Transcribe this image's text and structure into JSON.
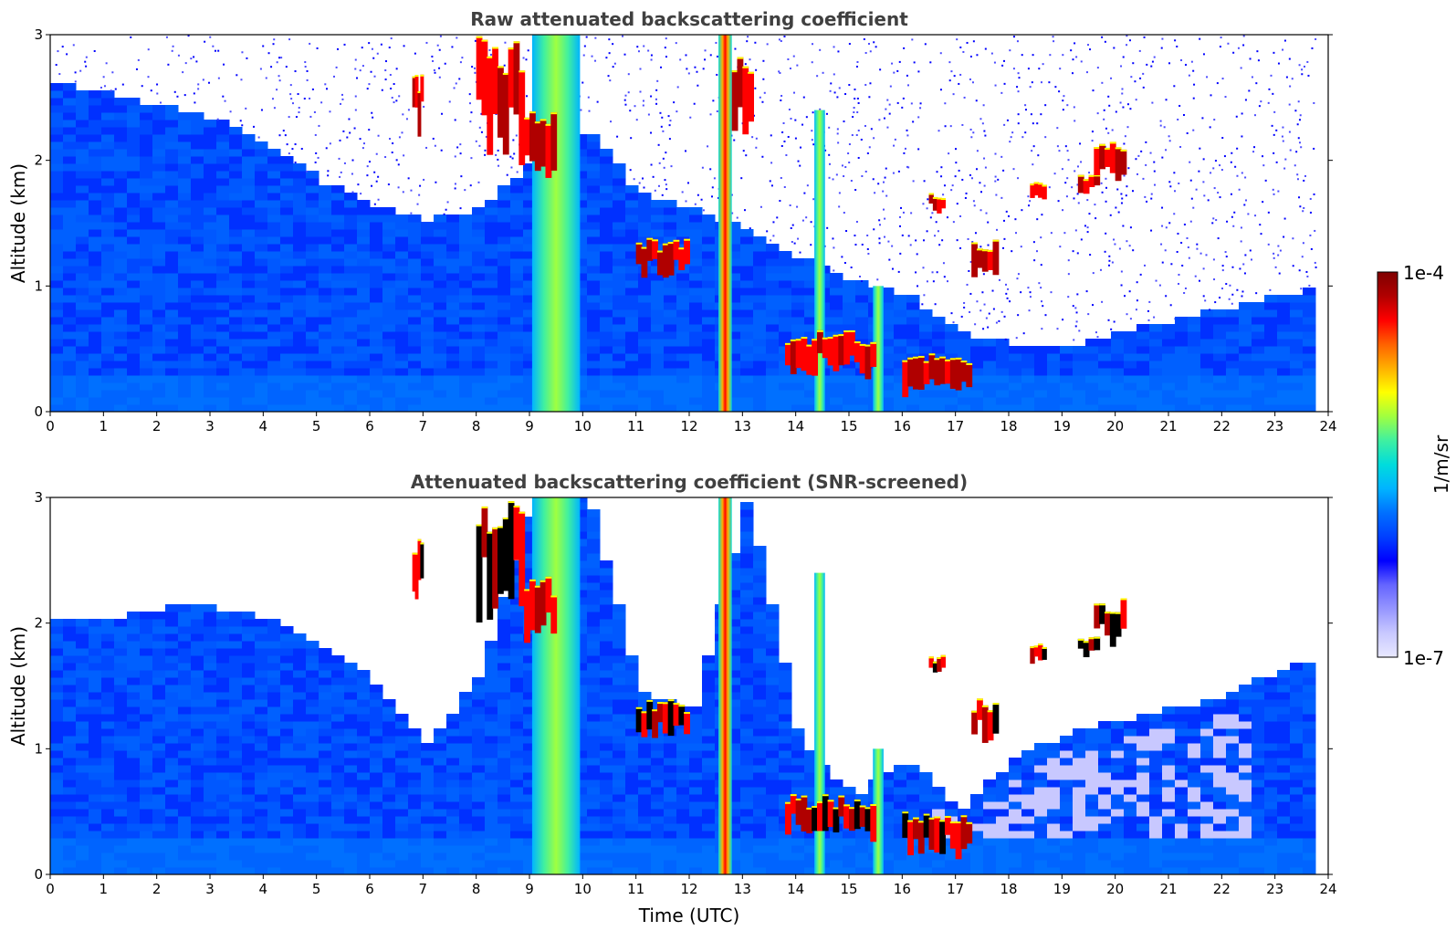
{
  "figure": {
    "colorbar": {
      "max_label": "1e-4",
      "min_label": "1e-7",
      "unit_label": "1/m/sr",
      "colors": [
        "#e8e8ff",
        "#c8c8ff",
        "#9696ff",
        "#6464ff",
        "#0000ff",
        "#0040ff",
        "#0070ff",
        "#00b4ff",
        "#00dcdc",
        "#40f0a0",
        "#a0ff40",
        "#ffff00",
        "#ffb000",
        "#ff6000",
        "#ff0000",
        "#b00000",
        "#7f0000"
      ]
    }
  },
  "chart_data": [
    {
      "type": "heatmap",
      "title": "Raw attenuated backscattering coefficient",
      "xlabel": "",
      "ylabel": "Altitude (km)",
      "xlim": [
        0,
        24
      ],
      "ylim": [
        0,
        3
      ],
      "x_ticks": [
        "0",
        "1",
        "2",
        "3",
        "4",
        "5",
        "6",
        "7",
        "8",
        "9",
        "10",
        "11",
        "12",
        "13",
        "14",
        "15",
        "16",
        "17",
        "18",
        "19",
        "20",
        "21",
        "22",
        "23",
        "24"
      ],
      "y_ticks": [
        "0",
        "1",
        "2",
        "3"
      ],
      "data_end_hour": 23.65,
      "noise_ceiling_km": [
        2.6,
        2.5,
        2.4,
        2.3,
        2.1,
        1.8,
        1.6,
        1.5,
        1.6,
        2.0,
        2.2,
        1.7,
        1.6,
        1.4,
        1.2,
        1.0,
        0.9,
        0.6,
        0.5,
        0.5,
        0.6,
        0.7,
        0.8,
        0.9,
        1.0
      ],
      "features": [
        {
          "kind": "plume",
          "x": [
            9.05,
            9.95
          ],
          "y": [
            0,
            3
          ],
          "level": "moderate"
        },
        {
          "kind": "plume",
          "x": [
            12.55,
            12.8
          ],
          "y": [
            0,
            3
          ],
          "level": "strong"
        },
        {
          "kind": "plume",
          "x": [
            15.45,
            15.65
          ],
          "y": [
            0,
            1.0
          ],
          "level": "moderate"
        },
        {
          "kind": "plume",
          "x": [
            14.35,
            14.55
          ],
          "y": [
            0,
            2.4
          ],
          "level": "moderate"
        },
        {
          "kind": "cloud",
          "x": [
            8.0,
            8.9
          ],
          "y": [
            2.2,
            3.0
          ],
          "level": "strong"
        },
        {
          "kind": "cloud",
          "x": [
            8.9,
            9.5
          ],
          "y": [
            1.9,
            2.4
          ],
          "level": "strong"
        },
        {
          "kind": "cloud",
          "x": [
            6.8,
            7.0
          ],
          "y": [
            2.3,
            2.7
          ],
          "level": "strong"
        },
        {
          "kind": "cloud",
          "x": [
            11.0,
            12.0
          ],
          "y": [
            1.1,
            1.4
          ],
          "level": "strong"
        },
        {
          "kind": "cloud",
          "x": [
            13.8,
            15.5
          ],
          "y": [
            0.35,
            0.65
          ],
          "level": "strong"
        },
        {
          "kind": "cloud",
          "x": [
            16.0,
            17.3
          ],
          "y": [
            0.2,
            0.5
          ],
          "level": "strong"
        },
        {
          "kind": "cloud",
          "x": [
            17.3,
            17.8
          ],
          "y": [
            1.1,
            1.4
          ],
          "level": "strong"
        },
        {
          "kind": "cloud",
          "x": [
            18.4,
            18.7
          ],
          "y": [
            1.7,
            1.85
          ],
          "level": "strong"
        },
        {
          "kind": "cloud",
          "x": [
            19.3,
            19.7
          ],
          "y": [
            1.75,
            1.9
          ],
          "level": "strong"
        },
        {
          "kind": "cloud",
          "x": [
            19.6,
            20.2
          ],
          "y": [
            1.9,
            2.2
          ],
          "level": "strong"
        },
        {
          "kind": "cloud",
          "x": [
            16.5,
            16.8
          ],
          "y": [
            1.6,
            1.75
          ],
          "level": "strong"
        },
        {
          "kind": "cloud",
          "x": [
            12.8,
            13.2
          ],
          "y": [
            2.3,
            2.9
          ],
          "level": "strong"
        }
      ]
    },
    {
      "type": "heatmap",
      "title": "Attenuated backscattering coefficient (SNR-screened)",
      "xlabel": "Time (UTC)",
      "ylabel": "Altitude (km)",
      "xlim": [
        0,
        24
      ],
      "ylim": [
        0,
        3
      ],
      "x_ticks": [
        "0",
        "1",
        "2",
        "3",
        "4",
        "5",
        "6",
        "7",
        "8",
        "9",
        "10",
        "11",
        "12",
        "13",
        "14",
        "15",
        "16",
        "17",
        "18",
        "19",
        "20",
        "21",
        "22",
        "23",
        "24"
      ],
      "y_ticks": [
        "0",
        "1",
        "2",
        "3"
      ],
      "data_end_hour": 23.65,
      "valid_top_km": [
        2.0,
        2.0,
        2.1,
        2.1,
        2.0,
        1.8,
        1.5,
        1.0,
        1.6,
        3.0,
        3.0,
        1.4,
        1.3,
        3.0,
        1.0,
        0.6,
        0.9,
        0.5,
        0.9,
        1.1,
        1.2,
        1.3,
        1.4,
        1.6,
        1.7
      ],
      "features": [
        {
          "kind": "plume",
          "x": [
            9.05,
            9.95
          ],
          "y": [
            0,
            3
          ],
          "level": "moderate"
        },
        {
          "kind": "plume",
          "x": [
            12.55,
            12.8
          ],
          "y": [
            0,
            3
          ],
          "level": "strong"
        },
        {
          "kind": "plume",
          "x": [
            15.45,
            15.65
          ],
          "y": [
            0,
            1.0
          ],
          "level": "moderate"
        },
        {
          "kind": "plume",
          "x": [
            14.35,
            14.55
          ],
          "y": [
            0,
            2.4
          ],
          "level": "moderate"
        },
        {
          "kind": "cloud",
          "x": [
            8.0,
            8.9
          ],
          "y": [
            2.2,
            3.0
          ],
          "level": "strong"
        },
        {
          "kind": "cloud",
          "x": [
            8.9,
            9.5
          ],
          "y": [
            1.9,
            2.4
          ],
          "level": "strong"
        },
        {
          "kind": "cloud",
          "x": [
            6.8,
            7.0
          ],
          "y": [
            2.3,
            2.7
          ],
          "level": "strong"
        },
        {
          "kind": "cloud",
          "x": [
            11.0,
            12.0
          ],
          "y": [
            1.1,
            1.4
          ],
          "level": "strong"
        },
        {
          "kind": "cloud",
          "x": [
            13.8,
            15.5
          ],
          "y": [
            0.35,
            0.65
          ],
          "level": "strong"
        },
        {
          "kind": "cloud",
          "x": [
            16.0,
            17.3
          ],
          "y": [
            0.2,
            0.5
          ],
          "level": "strong"
        },
        {
          "kind": "cloud",
          "x": [
            17.3,
            17.8
          ],
          "y": [
            1.1,
            1.4
          ],
          "level": "strong"
        },
        {
          "kind": "cloud",
          "x": [
            18.4,
            18.7
          ],
          "y": [
            1.7,
            1.85
          ],
          "level": "strong"
        },
        {
          "kind": "cloud",
          "x": [
            19.3,
            19.7
          ],
          "y": [
            1.75,
            1.9
          ],
          "level": "strong"
        },
        {
          "kind": "cloud",
          "x": [
            19.6,
            20.2
          ],
          "y": [
            1.9,
            2.2
          ],
          "level": "strong"
        },
        {
          "kind": "cloud",
          "x": [
            16.5,
            16.8
          ],
          "y": [
            1.6,
            1.75
          ],
          "level": "strong"
        }
      ]
    }
  ]
}
